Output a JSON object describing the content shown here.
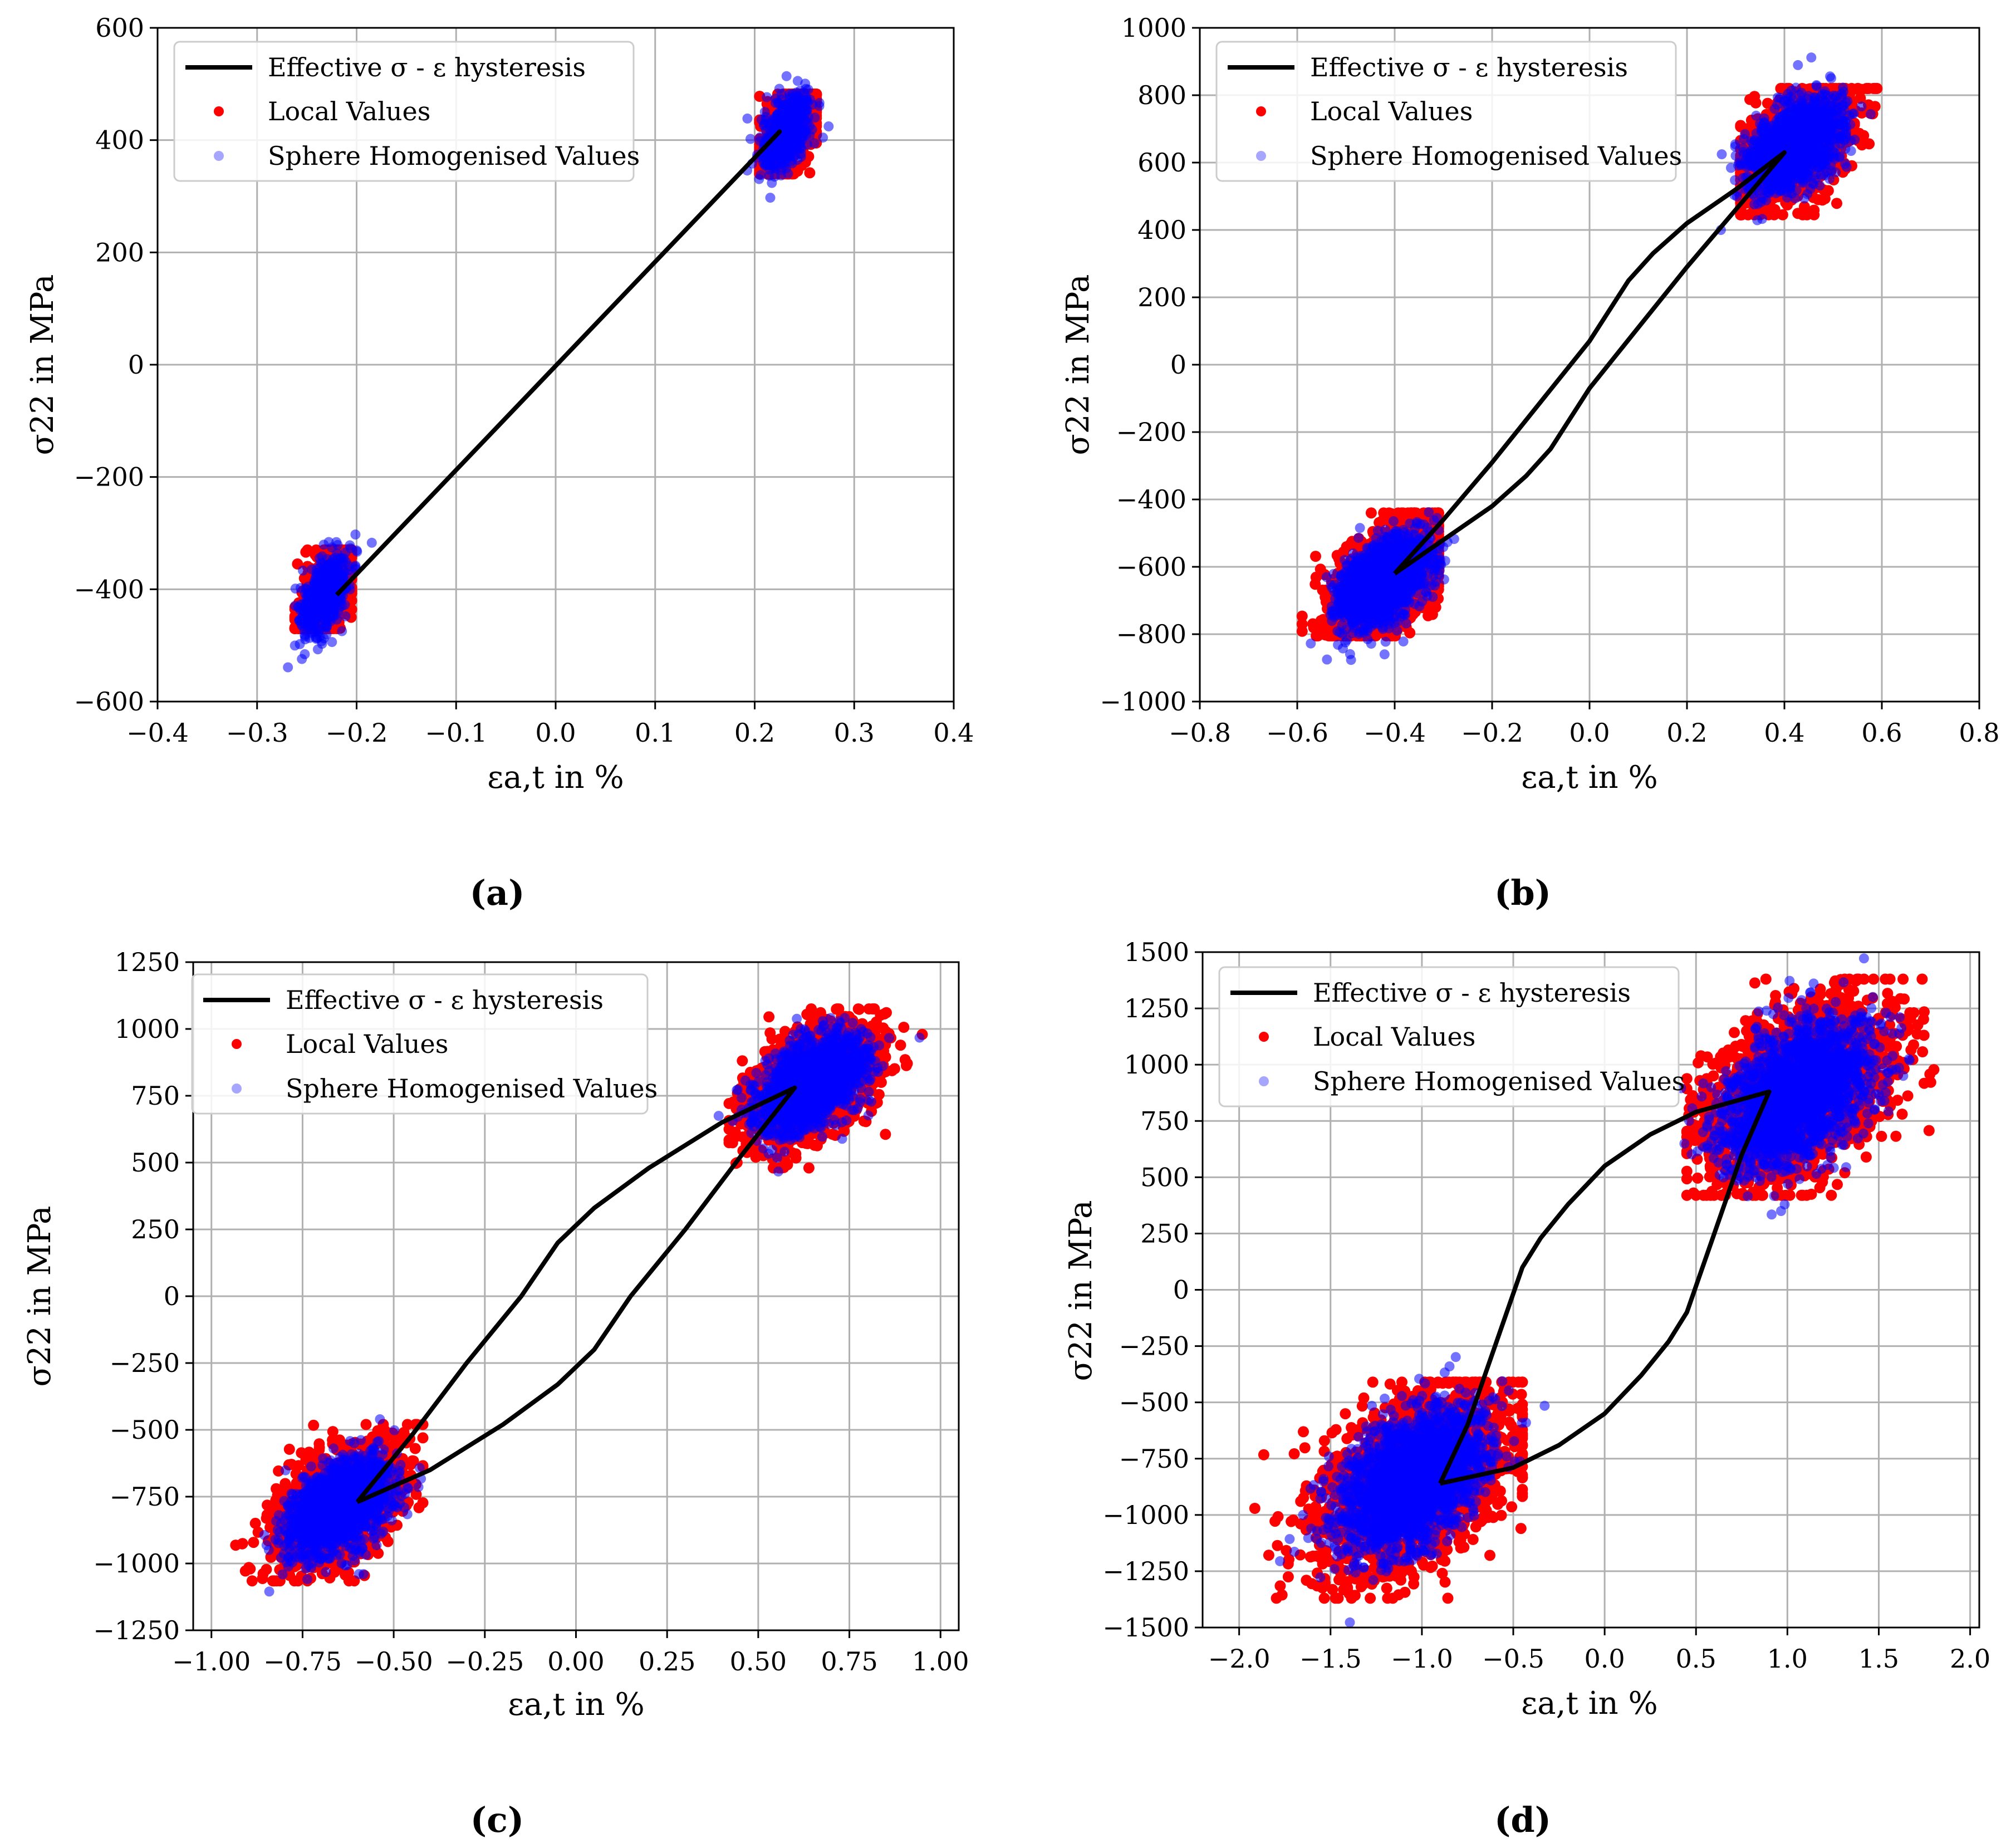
{
  "figure": {
    "colors": {
      "local": "#ff0000",
      "sphere": "#0000ff",
      "line": "#000000",
      "grid": "#b0b0b0"
    }
  },
  "chart_data": [
    {
      "id": "a",
      "type": "scatter",
      "caption": "(a)",
      "xlabel": "εa,t in %",
      "ylabel": "σ22 in MPa",
      "xlim": [
        -0.4,
        0.4
      ],
      "ylim": [
        -600,
        600
      ],
      "xticks": [
        -0.4,
        -0.3,
        -0.2,
        -0.1,
        0.0,
        0.1,
        0.2,
        0.3,
        0.4
      ],
      "xtick_labels": [
        "−0.4",
        "−0.3",
        "−0.2",
        "−0.1",
        "0.0",
        "0.1",
        "0.2",
        "0.3",
        "0.4"
      ],
      "yticks": [
        -600,
        -400,
        -200,
        0,
        200,
        400,
        600
      ],
      "ytick_labels": [
        "−600",
        "−400",
        "−200",
        "0",
        "200",
        "400",
        "600"
      ],
      "legend": [
        "Effective σ - ε hysteresis",
        "Local Values",
        "Sphere Homogenised Values"
      ],
      "hysteresis": {
        "upper": [
          [
            -0.22,
            -410
          ],
          [
            0.225,
            415
          ]
        ],
        "lower": [
          [
            0.225,
            415
          ],
          [
            -0.22,
            -410
          ]
        ]
      },
      "clusters": [
        {
          "center": [
            0.232,
            415
          ],
          "spread": [
            0.016,
            40
          ],
          "slope": 1500,
          "range_x": [
            0.205,
            0.262
          ],
          "range_y": [
            340,
            482
          ]
        },
        {
          "center": [
            -0.232,
            -410
          ],
          "spread": [
            0.016,
            40
          ],
          "slope": 1500,
          "range_x": [
            -0.262,
            -0.205
          ],
          "range_y": [
            -470,
            -330
          ]
        }
      ]
    },
    {
      "id": "b",
      "type": "scatter",
      "caption": "(b)",
      "xlabel": "εa,t in %",
      "ylabel": "σ22 in MPa",
      "xlim": [
        -0.8,
        0.8
      ],
      "ylim": [
        -1000,
        1000
      ],
      "xticks": [
        -0.8,
        -0.6,
        -0.4,
        -0.2,
        0.0,
        0.2,
        0.4,
        0.6,
        0.8
      ],
      "xtick_labels": [
        "−0.8",
        "−0.6",
        "−0.4",
        "−0.2",
        "0.0",
        "0.2",
        "0.4",
        "0.6",
        "0.8"
      ],
      "yticks": [
        -1000,
        -800,
        -600,
        -400,
        -200,
        0,
        200,
        400,
        600,
        800,
        1000
      ],
      "ytick_labels": [
        "−1000",
        "−800",
        "−600",
        "−400",
        "−200",
        "0",
        "200",
        "400",
        "600",
        "800",
        "1000"
      ],
      "legend": [
        "Effective σ - ε hysteresis",
        "Local Values",
        "Sphere Homogenised Values"
      ],
      "hysteresis": {
        "upper": [
          [
            -0.4,
            -620
          ],
          [
            -0.3,
            -460
          ],
          [
            -0.2,
            -290
          ],
          [
            -0.1,
            -110
          ],
          [
            0.0,
            70
          ],
          [
            0.08,
            250
          ],
          [
            0.13,
            330
          ],
          [
            0.2,
            420
          ],
          [
            0.3,
            520
          ],
          [
            0.4,
            630
          ]
        ],
        "lower": [
          [
            0.4,
            630
          ],
          [
            0.3,
            460
          ],
          [
            0.2,
            290
          ],
          [
            0.1,
            110
          ],
          [
            0.0,
            -70
          ],
          [
            -0.08,
            -250
          ],
          [
            -0.13,
            -330
          ],
          [
            -0.2,
            -420
          ],
          [
            -0.3,
            -520
          ],
          [
            -0.4,
            -620
          ]
        ]
      },
      "clusters": [
        {
          "center": [
            0.42,
            650
          ],
          "spread": [
            0.06,
            75
          ],
          "slope": 700,
          "range_x": [
            0.31,
            0.59
          ],
          "range_y": [
            445,
            820
          ]
        },
        {
          "center": [
            -0.42,
            -640
          ],
          "spread": [
            0.06,
            75
          ],
          "slope": 700,
          "range_x": [
            -0.59,
            -0.31
          ],
          "range_y": [
            -805,
            -440
          ]
        }
      ]
    },
    {
      "id": "c",
      "type": "scatter",
      "caption": "(c)",
      "xlabel": "εa,t in %",
      "ylabel": "σ22 in MPa",
      "xlim": [
        -1.05,
        1.05
      ],
      "ylim": [
        -1250,
        1250
      ],
      "xticks": [
        -1.0,
        -0.75,
        -0.5,
        -0.25,
        0.0,
        0.25,
        0.5,
        0.75,
        1.0
      ],
      "xtick_labels": [
        "−1.00",
        "−0.75",
        "−0.50",
        "−0.25",
        "0.00",
        "0.25",
        "0.50",
        "0.75",
        "1.00"
      ],
      "yticks": [
        -1250,
        -1000,
        -750,
        -500,
        -250,
        0,
        250,
        500,
        750,
        1000,
        1250
      ],
      "ytick_labels": [
        "−1250",
        "−1000",
        "−750",
        "−500",
        "−250",
        "0",
        "250",
        "500",
        "750",
        "1000",
        "1250"
      ],
      "legend": [
        "Effective σ - ε hysteresis",
        "Local Values",
        "Sphere Homogenised Values"
      ],
      "hysteresis": {
        "upper": [
          [
            -0.6,
            -770
          ],
          [
            -0.45,
            -520
          ],
          [
            -0.3,
            -250
          ],
          [
            -0.15,
            0
          ],
          [
            -0.1,
            100
          ],
          [
            -0.05,
            200
          ],
          [
            0.05,
            330
          ],
          [
            0.2,
            480
          ],
          [
            0.4,
            650
          ],
          [
            0.6,
            780
          ]
        ],
        "lower": [
          [
            0.6,
            780
          ],
          [
            0.45,
            520
          ],
          [
            0.3,
            250
          ],
          [
            0.15,
            0
          ],
          [
            0.1,
            -100
          ],
          [
            0.05,
            -200
          ],
          [
            -0.05,
            -330
          ],
          [
            -0.2,
            -480
          ],
          [
            -0.4,
            -650
          ],
          [
            -0.6,
            -770
          ]
        ]
      },
      "clusters": [
        {
          "center": [
            0.65,
            800
          ],
          "spread": [
            0.09,
            100
          ],
          "slope": 600,
          "range_x": [
            0.42,
            0.95
          ],
          "range_y": [
            480,
            1075
          ]
        },
        {
          "center": [
            -0.65,
            -790
          ],
          "spread": [
            0.09,
            100
          ],
          "slope": 600,
          "range_x": [
            -0.95,
            -0.42
          ],
          "range_y": [
            -1065,
            -480
          ]
        }
      ]
    },
    {
      "id": "d",
      "type": "scatter",
      "caption": "(d)",
      "xlabel": "εa,t in %",
      "ylabel": "σ22 in MPa",
      "xlim": [
        -2.2,
        2.05
      ],
      "ylim": [
        -1500,
        1500
      ],
      "xticks": [
        -2.0,
        -1.5,
        -1.0,
        -0.5,
        0.0,
        0.5,
        1.0,
        1.5,
        2.0
      ],
      "xtick_labels": [
        "−2.0",
        "−1.5",
        "−1.0",
        "−0.5",
        "0.0",
        "0.5",
        "1.0",
        "1.5",
        "2.0"
      ],
      "yticks": [
        -1500,
        -1250,
        -1000,
        -750,
        -500,
        -250,
        0,
        250,
        500,
        750,
        1000,
        1250,
        1500
      ],
      "ytick_labels": [
        "−1500",
        "−1250",
        "−1000",
        "−750",
        "−500",
        "−250",
        "0",
        "250",
        "500",
        "750",
        "1000",
        "1250",
        "1500"
      ],
      "legend": [
        "Effective σ - ε hysteresis",
        "Local Values",
        "Sphere Homogenised Values"
      ],
      "hysteresis": {
        "upper": [
          [
            -0.9,
            -860
          ],
          [
            -0.75,
            -600
          ],
          [
            -0.6,
            -250
          ],
          [
            -0.45,
            100
          ],
          [
            -0.35,
            230
          ],
          [
            -0.2,
            380
          ],
          [
            0.0,
            550
          ],
          [
            0.25,
            690
          ],
          [
            0.5,
            790
          ],
          [
            0.9,
            880
          ]
        ],
        "lower": [
          [
            0.9,
            880
          ],
          [
            0.75,
            600
          ],
          [
            0.6,
            250
          ],
          [
            0.45,
            -100
          ],
          [
            0.35,
            -230
          ],
          [
            0.2,
            -380
          ],
          [
            0.0,
            -550
          ],
          [
            -0.25,
            -690
          ],
          [
            -0.5,
            -790
          ],
          [
            -0.9,
            -860
          ]
        ]
      },
      "clusters": [
        {
          "center": [
            1.05,
            870
          ],
          "spread": [
            0.25,
            180
          ],
          "slope": 350,
          "range_x": [
            0.45,
            1.92
          ],
          "range_y": [
            420,
            1380
          ]
        },
        {
          "center": [
            -1.05,
            -850
          ],
          "spread": [
            0.25,
            180
          ],
          "slope": 350,
          "range_x": [
            -1.95,
            -0.45
          ],
          "range_y": [
            -1370,
            -410
          ]
        }
      ]
    }
  ]
}
